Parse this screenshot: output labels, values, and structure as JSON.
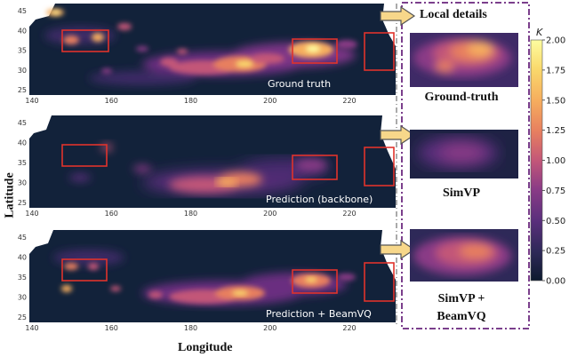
{
  "figure": {
    "y_axis_label": "Latitude",
    "x_axis_label": "Longitude",
    "local_header": "Local details",
    "panels": [
      {
        "label": "Ground truth"
      },
      {
        "label": "Prediction (backbone)"
      },
      {
        "label": "Prediction + BeamVQ"
      }
    ],
    "crops": [
      {
        "label_lines": [
          "Ground-truth"
        ]
      },
      {
        "label_lines": [
          "SimVP"
        ]
      },
      {
        "label_lines": [
          "SimVP +",
          "BeamVQ"
        ]
      }
    ],
    "x_ticks": [
      "140",
      "160",
      "180",
      "200",
      "220"
    ],
    "y_ticks": [
      "45",
      "40",
      "35",
      "30",
      "25"
    ],
    "colorbar": {
      "title": "K",
      "ticks": [
        "2.00",
        "1.75",
        "1.50",
        "1.25",
        "1.00",
        "0.75",
        "0.50",
        "0.25",
        "0.00"
      ],
      "colors": [
        "#0d1a2e",
        "#2e2958",
        "#5a2f7c",
        "#8a3b86",
        "#c35778",
        "#e77f5f",
        "#f6ae5e",
        "#f9d96c",
        "#fdfda0"
      ]
    },
    "box_color": "#e0332c",
    "dashed_frame_color": "#7b3f8c"
  }
}
